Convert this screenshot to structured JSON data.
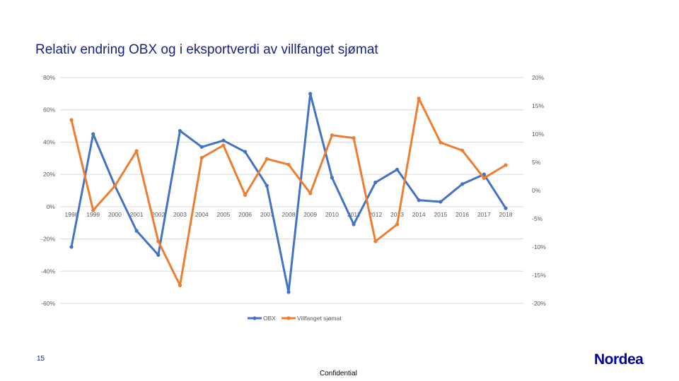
{
  "slide": {
    "title": "Relativ endring OBX og i eksportverdi av villfanget sjømat",
    "page_number": "15",
    "footer": "Confidential",
    "logo": "Nordea"
  },
  "colors": {
    "obx": "#4472c4",
    "sjomat": "#ed7d31",
    "grid": "#d9d9d9",
    "axis_text": "#595959",
    "title": "#1a237e",
    "logo": "#0000a0"
  },
  "chart_data": {
    "type": "line",
    "title": "Relativ endring OBX og i eksportverdi av villfanget sjømat",
    "categories": [
      "1998",
      "1999",
      "2000",
      "2001",
      "2002",
      "2003",
      "2004",
      "2005",
      "2006",
      "2007",
      "2008",
      "2009",
      "2010",
      "2011",
      "2012",
      "2013",
      "2014",
      "2015",
      "2016",
      "2017",
      "2018"
    ],
    "y_left": {
      "ticks": [
        "80%",
        "60%",
        "40%",
        "20%",
        "0%",
        "-20%",
        "-40%",
        "-60%"
      ],
      "ylim": [
        -60,
        80
      ]
    },
    "y_right": {
      "ticks": [
        "20%",
        "15%",
        "10%",
        "5%",
        "0%",
        "-5%",
        "-10%",
        "-15%",
        "-20%"
      ],
      "ylim": [
        -20,
        20
      ]
    },
    "grid": true,
    "legend": "bottom",
    "series": [
      {
        "name": "OBX",
        "axis": "left",
        "values": [
          -25,
          45,
          13,
          -15,
          -30,
          47,
          37,
          41,
          34,
          13,
          -53,
          70,
          18,
          -11,
          15,
          23,
          4,
          3,
          14,
          20,
          -1
        ]
      },
      {
        "name": "Villfanget sjømat",
        "axis": "right",
        "values": [
          12.5,
          -3.5,
          0.8,
          7,
          -9,
          -16.8,
          5.8,
          8,
          -0.8,
          5.6,
          4.6,
          -0.5,
          9.8,
          9.3,
          -9,
          -6,
          16.3,
          8.5,
          7.1,
          2.2,
          4.5
        ]
      }
    ]
  }
}
